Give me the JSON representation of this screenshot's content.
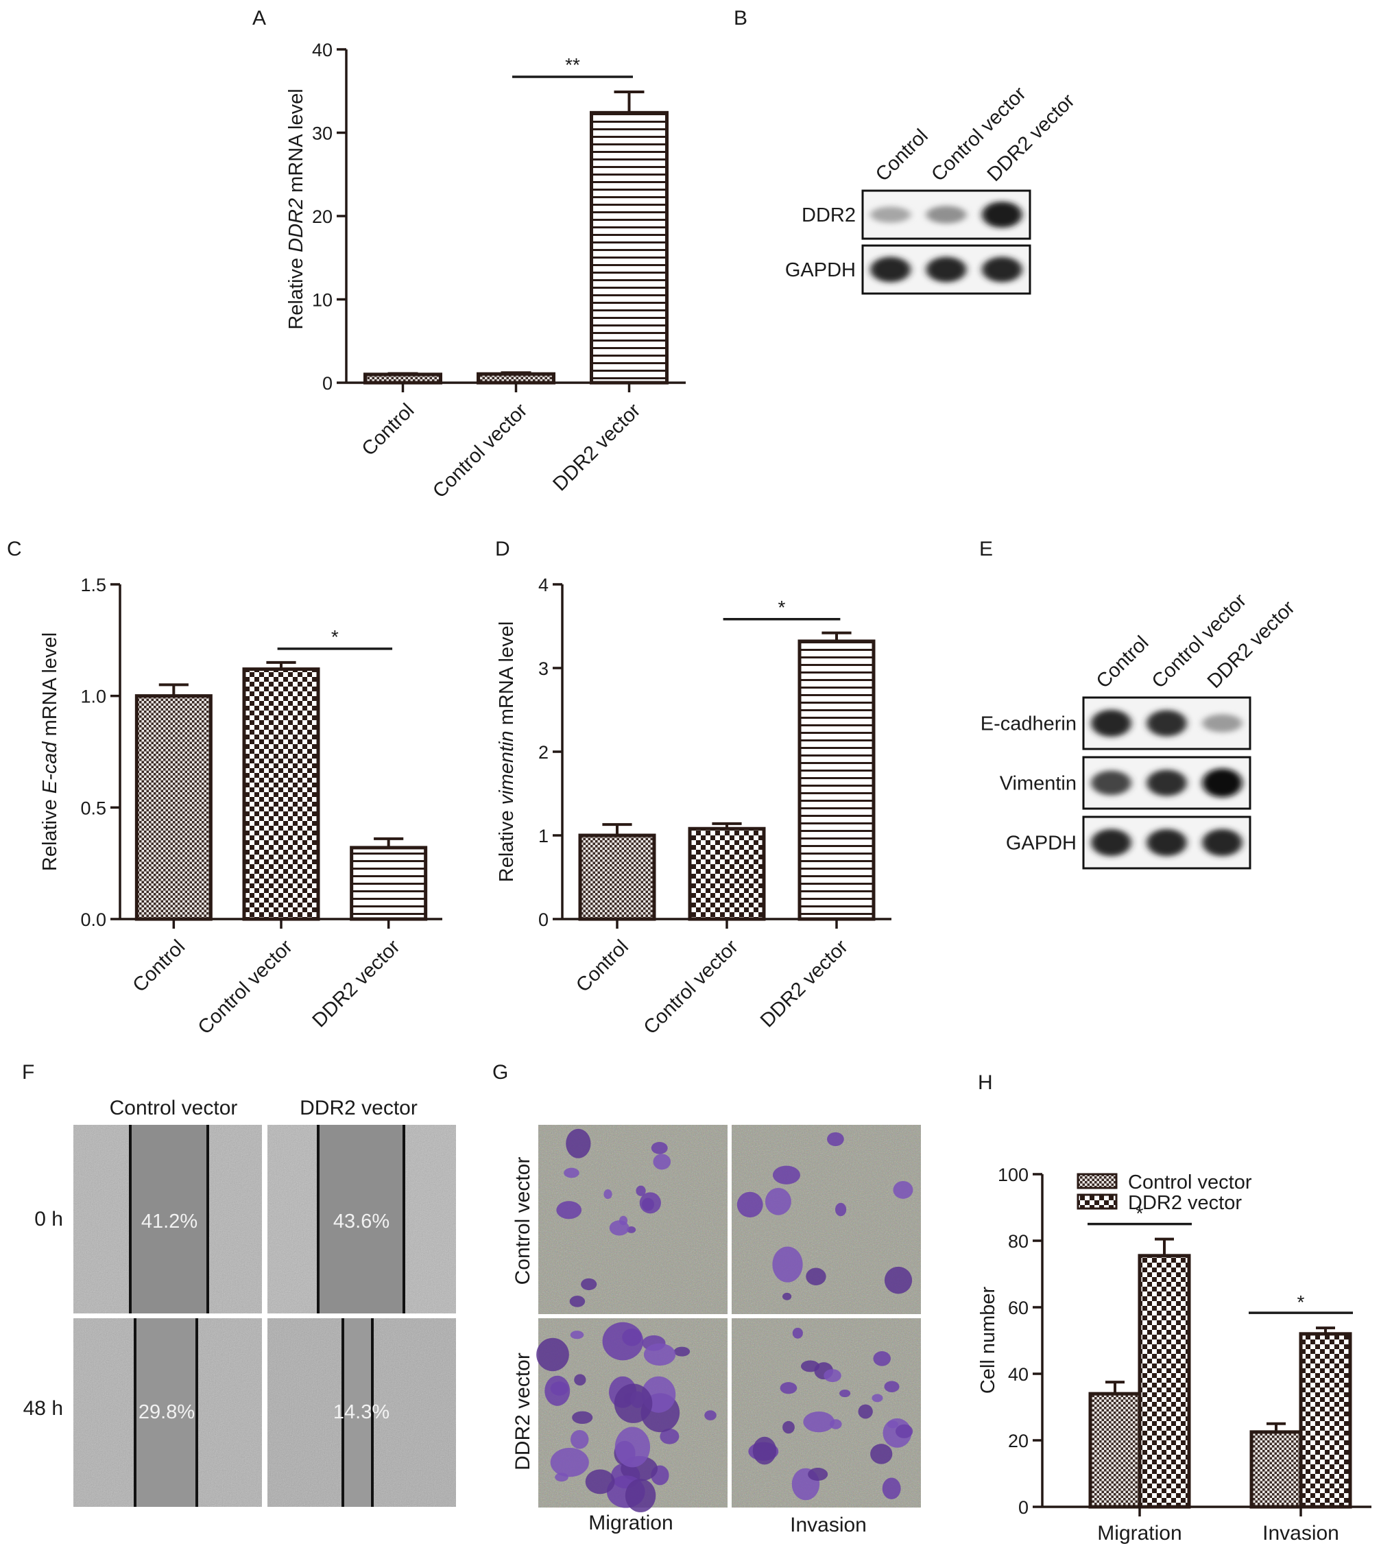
{
  "panels": {
    "A": {
      "letter": "A",
      "ylabel_prefix": "Relative ",
      "ylabel_gene": "DDR2",
      "ylabel_suffix": " mRNA level",
      "chart_data": {
        "type": "bar",
        "categories": [
          "Control",
          "Control vector",
          "DDR2 vector"
        ],
        "values": [
          1.0,
          1.05,
          32.4
        ],
        "errors": [
          0.1,
          0.15,
          2.5
        ],
        "ylim": [
          0,
          40
        ],
        "yticks": [
          "0",
          "10",
          "20",
          "30",
          "40"
        ],
        "significance": [
          {
            "from": 1,
            "to": 2,
            "label": "**"
          }
        ]
      }
    },
    "B": {
      "letter": "B",
      "lanes": [
        "Control",
        "Control vector",
        "DDR2 vector"
      ],
      "rows": [
        {
          "label": "DDR2",
          "intensity": [
            0.3,
            0.4,
            0.95
          ]
        },
        {
          "label": "GAPDH",
          "intensity": [
            0.9,
            0.9,
            0.9
          ]
        }
      ]
    },
    "C": {
      "letter": "C",
      "ylabel_prefix": "Relative ",
      "ylabel_gene": "E-cad",
      "ylabel_suffix": " mRNA level",
      "chart_data": {
        "type": "bar",
        "categories": [
          "Control",
          "Control vector",
          "DDR2 vector"
        ],
        "values": [
          1.0,
          1.12,
          0.32
        ],
        "errors": [
          0.05,
          0.03,
          0.04
        ],
        "ylim": [
          0,
          1.5
        ],
        "yticks": [
          "0.0",
          "0.5",
          "1.0",
          "1.5"
        ],
        "significance": [
          {
            "from": 1,
            "to": 2,
            "label": "*"
          }
        ]
      }
    },
    "D": {
      "letter": "D",
      "ylabel_prefix": "Relative ",
      "ylabel_gene": "vimentin",
      "ylabel_suffix": " mRNA level",
      "chart_data": {
        "type": "bar",
        "categories": [
          "Control",
          "Control vector",
          "DDR2 vector"
        ],
        "values": [
          1.0,
          1.08,
          3.32
        ],
        "errors": [
          0.13,
          0.06,
          0.1
        ],
        "ylim": [
          0,
          4
        ],
        "yticks": [
          "0",
          "1",
          "2",
          "3",
          "4"
        ],
        "significance": [
          {
            "from": 1,
            "to": 2,
            "label": "*"
          }
        ]
      }
    },
    "E": {
      "letter": "E",
      "lanes": [
        "Control",
        "Control vector",
        "DDR2 vector"
      ],
      "rows": [
        {
          "label": "E-cadherin",
          "intensity": [
            0.9,
            0.85,
            0.35
          ]
        },
        {
          "label": "Vimentin",
          "intensity": [
            0.75,
            0.85,
            1.0
          ]
        },
        {
          "label": "GAPDH",
          "intensity": [
            0.9,
            0.9,
            0.9
          ]
        }
      ]
    },
    "F": {
      "letter": "F",
      "columns": [
        "Control vector",
        "DDR2 vector"
      ],
      "rows": [
        "0 h",
        "48 h"
      ],
      "wound_percent": [
        [
          "41.2%",
          "43.6%"
        ],
        [
          "29.8%",
          "14.3%"
        ]
      ]
    },
    "G": {
      "letter": "G",
      "rows": [
        "Control vector",
        "DDR2 vector"
      ],
      "columns": [
        "Migration",
        "Invasion"
      ]
    },
    "H": {
      "letter": "H",
      "ylabel": "Cell number",
      "chart_data": {
        "type": "bar",
        "categories": [
          "Migration",
          "Invasion"
        ],
        "series": [
          {
            "name": "Control vector",
            "values": [
              34,
              22.5
            ],
            "errors": [
              3.5,
              2.5
            ]
          },
          {
            "name": "DDR2 vector",
            "values": [
              75.5,
              52
            ],
            "errors": [
              5,
              1.8
            ]
          }
        ],
        "ylim": [
          0,
          100
        ],
        "yticks": [
          "0",
          "20",
          "40",
          "60",
          "80",
          "100"
        ],
        "legend": "top-left",
        "significance": [
          {
            "group": 0,
            "label": "*"
          },
          {
            "group": 1,
            "label": "*"
          }
        ]
      }
    }
  }
}
